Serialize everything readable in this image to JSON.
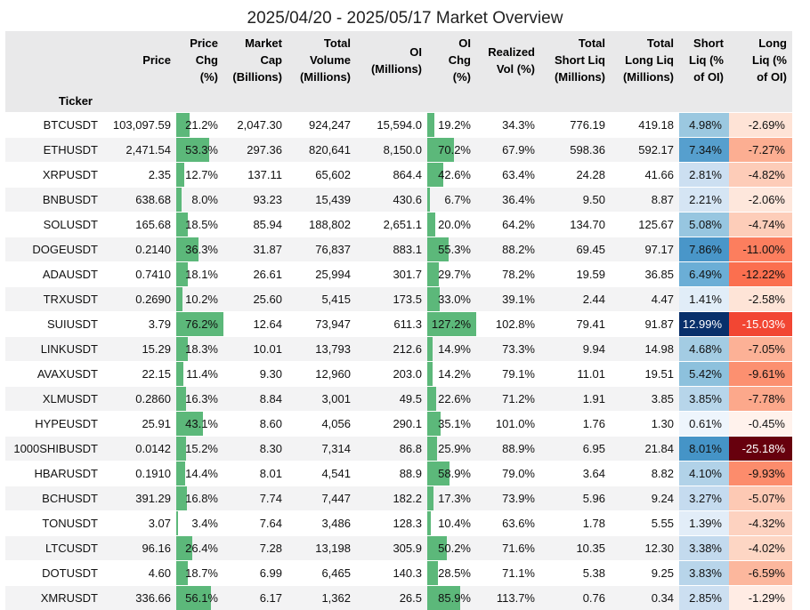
{
  "title": "2025/04/20 - 2025/05/17 Market Overview",
  "index_label": "Ticker",
  "columns": [
    {
      "key": "price",
      "label": [
        "Price"
      ]
    },
    {
      "key": "price_chg",
      "label": [
        "Price",
        "Chg",
        "(%)"
      ]
    },
    {
      "key": "mcap",
      "label": [
        "Market",
        "Cap",
        "(Billions)"
      ]
    },
    {
      "key": "volume",
      "label": [
        "Total",
        "Volume",
        "(Millions)"
      ]
    },
    {
      "key": "oi",
      "label": [
        "OI",
        "(Millions)"
      ]
    },
    {
      "key": "oi_chg",
      "label": [
        "OI",
        "Chg",
        "(%)"
      ]
    },
    {
      "key": "rvol",
      "label": [
        "Realized",
        "Vol (%)"
      ]
    },
    {
      "key": "short_liq",
      "label": [
        "Total",
        "Short Liq",
        "(Millions)"
      ]
    },
    {
      "key": "long_liq",
      "label": [
        "Total",
        "Long Liq",
        "(Millions)"
      ]
    },
    {
      "key": "short_pct",
      "label": [
        "Short",
        "Liq (%",
        "of OI)"
      ]
    },
    {
      "key": "long_pct",
      "label": [
        "Long",
        "Liq (%",
        "of OI)"
      ]
    }
  ],
  "colors": {
    "bar": "#5cb87a",
    "short_scale": [
      "#f7fbff",
      "#08306b"
    ],
    "long_scale": [
      "#fff5f0",
      "#67000d"
    ]
  },
  "chart_data": {
    "type": "table",
    "title": "2025/04/20 - 2025/05/17 Market Overview",
    "rows": [
      {
        "ticker": "BTCUSDT",
        "price": "103,097.59",
        "price_chg": 21.2,
        "mcap": "2,047.30",
        "volume": "924,247",
        "oi": "15,594.0",
        "oi_chg": 19.2,
        "rvol": "34.3%",
        "short_liq": "776.19",
        "long_liq": "419.18",
        "short_pct": 4.98,
        "long_pct": -2.69
      },
      {
        "ticker": "ETHUSDT",
        "price": "2,471.54",
        "price_chg": 53.3,
        "mcap": "297.36",
        "volume": "820,641",
        "oi": "8,150.0",
        "oi_chg": 70.2,
        "rvol": "67.9%",
        "short_liq": "598.36",
        "long_liq": "592.17",
        "short_pct": 7.34,
        "long_pct": -7.27
      },
      {
        "ticker": "XRPUSDT",
        "price": "2.35",
        "price_chg": 12.7,
        "mcap": "137.11",
        "volume": "65,602",
        "oi": "864.4",
        "oi_chg": 42.6,
        "rvol": "63.4%",
        "short_liq": "24.28",
        "long_liq": "41.66",
        "short_pct": 2.81,
        "long_pct": -4.82
      },
      {
        "ticker": "BNBUSDT",
        "price": "638.68",
        "price_chg": 8.0,
        "mcap": "93.23",
        "volume": "15,439",
        "oi": "430.6",
        "oi_chg": 6.7,
        "rvol": "36.4%",
        "short_liq": "9.50",
        "long_liq": "8.87",
        "short_pct": 2.21,
        "long_pct": -2.06
      },
      {
        "ticker": "SOLUSDT",
        "price": "165.68",
        "price_chg": 18.5,
        "mcap": "85.94",
        "volume": "188,802",
        "oi": "2,651.1",
        "oi_chg": 20.0,
        "rvol": "64.2%",
        "short_liq": "134.70",
        "long_liq": "125.67",
        "short_pct": 5.08,
        "long_pct": -4.74
      },
      {
        "ticker": "DOGEUSDT",
        "price": "0.2140",
        "price_chg": 36.3,
        "mcap": "31.87",
        "volume": "76,837",
        "oi": "883.1",
        "oi_chg": 55.3,
        "rvol": "88.2%",
        "short_liq": "69.45",
        "long_liq": "97.17",
        "short_pct": 7.86,
        "long_pct": -11.0
      },
      {
        "ticker": "ADAUSDT",
        "price": "0.7410",
        "price_chg": 18.1,
        "mcap": "26.61",
        "volume": "25,994",
        "oi": "301.7",
        "oi_chg": 29.7,
        "rvol": "78.2%",
        "short_liq": "19.59",
        "long_liq": "36.85",
        "short_pct": 6.49,
        "long_pct": -12.22
      },
      {
        "ticker": "TRXUSDT",
        "price": "0.2690",
        "price_chg": 10.2,
        "mcap": "25.60",
        "volume": "5,415",
        "oi": "173.5",
        "oi_chg": 33.0,
        "rvol": "39.1%",
        "short_liq": "2.44",
        "long_liq": "4.47",
        "short_pct": 1.41,
        "long_pct": -2.58
      },
      {
        "ticker": "SUIUSDT",
        "price": "3.79",
        "price_chg": 76.2,
        "mcap": "12.64",
        "volume": "73,947",
        "oi": "611.3",
        "oi_chg": 127.2,
        "rvol": "102.8%",
        "short_liq": "79.41",
        "long_liq": "91.87",
        "short_pct": 12.99,
        "long_pct": -15.03
      },
      {
        "ticker": "LINKUSDT",
        "price": "15.29",
        "price_chg": 18.3,
        "mcap": "10.01",
        "volume": "13,793",
        "oi": "212.6",
        "oi_chg": 14.9,
        "rvol": "73.3%",
        "short_liq": "9.94",
        "long_liq": "14.98",
        "short_pct": 4.68,
        "long_pct": -7.05
      },
      {
        "ticker": "AVAXUSDT",
        "price": "22.15",
        "price_chg": 11.4,
        "mcap": "9.30",
        "volume": "12,960",
        "oi": "203.0",
        "oi_chg": 14.2,
        "rvol": "79.1%",
        "short_liq": "11.01",
        "long_liq": "19.51",
        "short_pct": 5.42,
        "long_pct": -9.61
      },
      {
        "ticker": "XLMUSDT",
        "price": "0.2860",
        "price_chg": 16.3,
        "mcap": "8.84",
        "volume": "3,001",
        "oi": "49.5",
        "oi_chg": 22.6,
        "rvol": "71.2%",
        "short_liq": "1.91",
        "long_liq": "3.85",
        "short_pct": 3.85,
        "long_pct": -7.78
      },
      {
        "ticker": "HYPEUSDT",
        "price": "25.91",
        "price_chg": 43.1,
        "mcap": "8.60",
        "volume": "4,056",
        "oi": "290.1",
        "oi_chg": 35.1,
        "rvol": "101.0%",
        "short_liq": "1.76",
        "long_liq": "1.30",
        "short_pct": 0.61,
        "long_pct": -0.45
      },
      {
        "ticker": "1000SHIBUSDT",
        "price": "0.0142",
        "price_chg": 15.2,
        "mcap": "8.30",
        "volume": "7,314",
        "oi": "86.8",
        "oi_chg": 25.9,
        "rvol": "88.9%",
        "short_liq": "6.95",
        "long_liq": "21.84",
        "short_pct": 8.01,
        "long_pct": -25.18
      },
      {
        "ticker": "HBARUSDT",
        "price": "0.1910",
        "price_chg": 14.4,
        "mcap": "8.01",
        "volume": "4,541",
        "oi": "88.9",
        "oi_chg": 58.9,
        "rvol": "79.0%",
        "short_liq": "3.64",
        "long_liq": "8.82",
        "short_pct": 4.1,
        "long_pct": -9.93
      },
      {
        "ticker": "BCHUSDT",
        "price": "391.29",
        "price_chg": 16.8,
        "mcap": "7.74",
        "volume": "7,447",
        "oi": "182.2",
        "oi_chg": 17.3,
        "rvol": "73.9%",
        "short_liq": "5.96",
        "long_liq": "9.24",
        "short_pct": 3.27,
        "long_pct": -5.07
      },
      {
        "ticker": "TONUSDT",
        "price": "3.07",
        "price_chg": 3.4,
        "mcap": "7.64",
        "volume": "3,486",
        "oi": "128.3",
        "oi_chg": 10.4,
        "rvol": "63.6%",
        "short_liq": "1.78",
        "long_liq": "5.55",
        "short_pct": 1.39,
        "long_pct": -4.32
      },
      {
        "ticker": "LTCUSDT",
        "price": "96.16",
        "price_chg": 26.4,
        "mcap": "7.28",
        "volume": "13,198",
        "oi": "305.9",
        "oi_chg": 50.2,
        "rvol": "71.6%",
        "short_liq": "10.35",
        "long_liq": "12.30",
        "short_pct": 3.38,
        "long_pct": -4.02
      },
      {
        "ticker": "DOTUSDT",
        "price": "4.60",
        "price_chg": 18.7,
        "mcap": "6.99",
        "volume": "6,465",
        "oi": "140.3",
        "oi_chg": 28.5,
        "rvol": "71.1%",
        "short_liq": "5.38",
        "long_liq": "9.25",
        "short_pct": 3.83,
        "long_pct": -6.59
      },
      {
        "ticker": "XMRUSDT",
        "price": "336.66",
        "price_chg": 56.1,
        "mcap": "6.17",
        "volume": "1,362",
        "oi": "26.5",
        "oi_chg": 85.9,
        "rvol": "113.7%",
        "short_liq": "0.76",
        "long_liq": "0.34",
        "short_pct": 2.85,
        "long_pct": -1.29
      }
    ]
  }
}
